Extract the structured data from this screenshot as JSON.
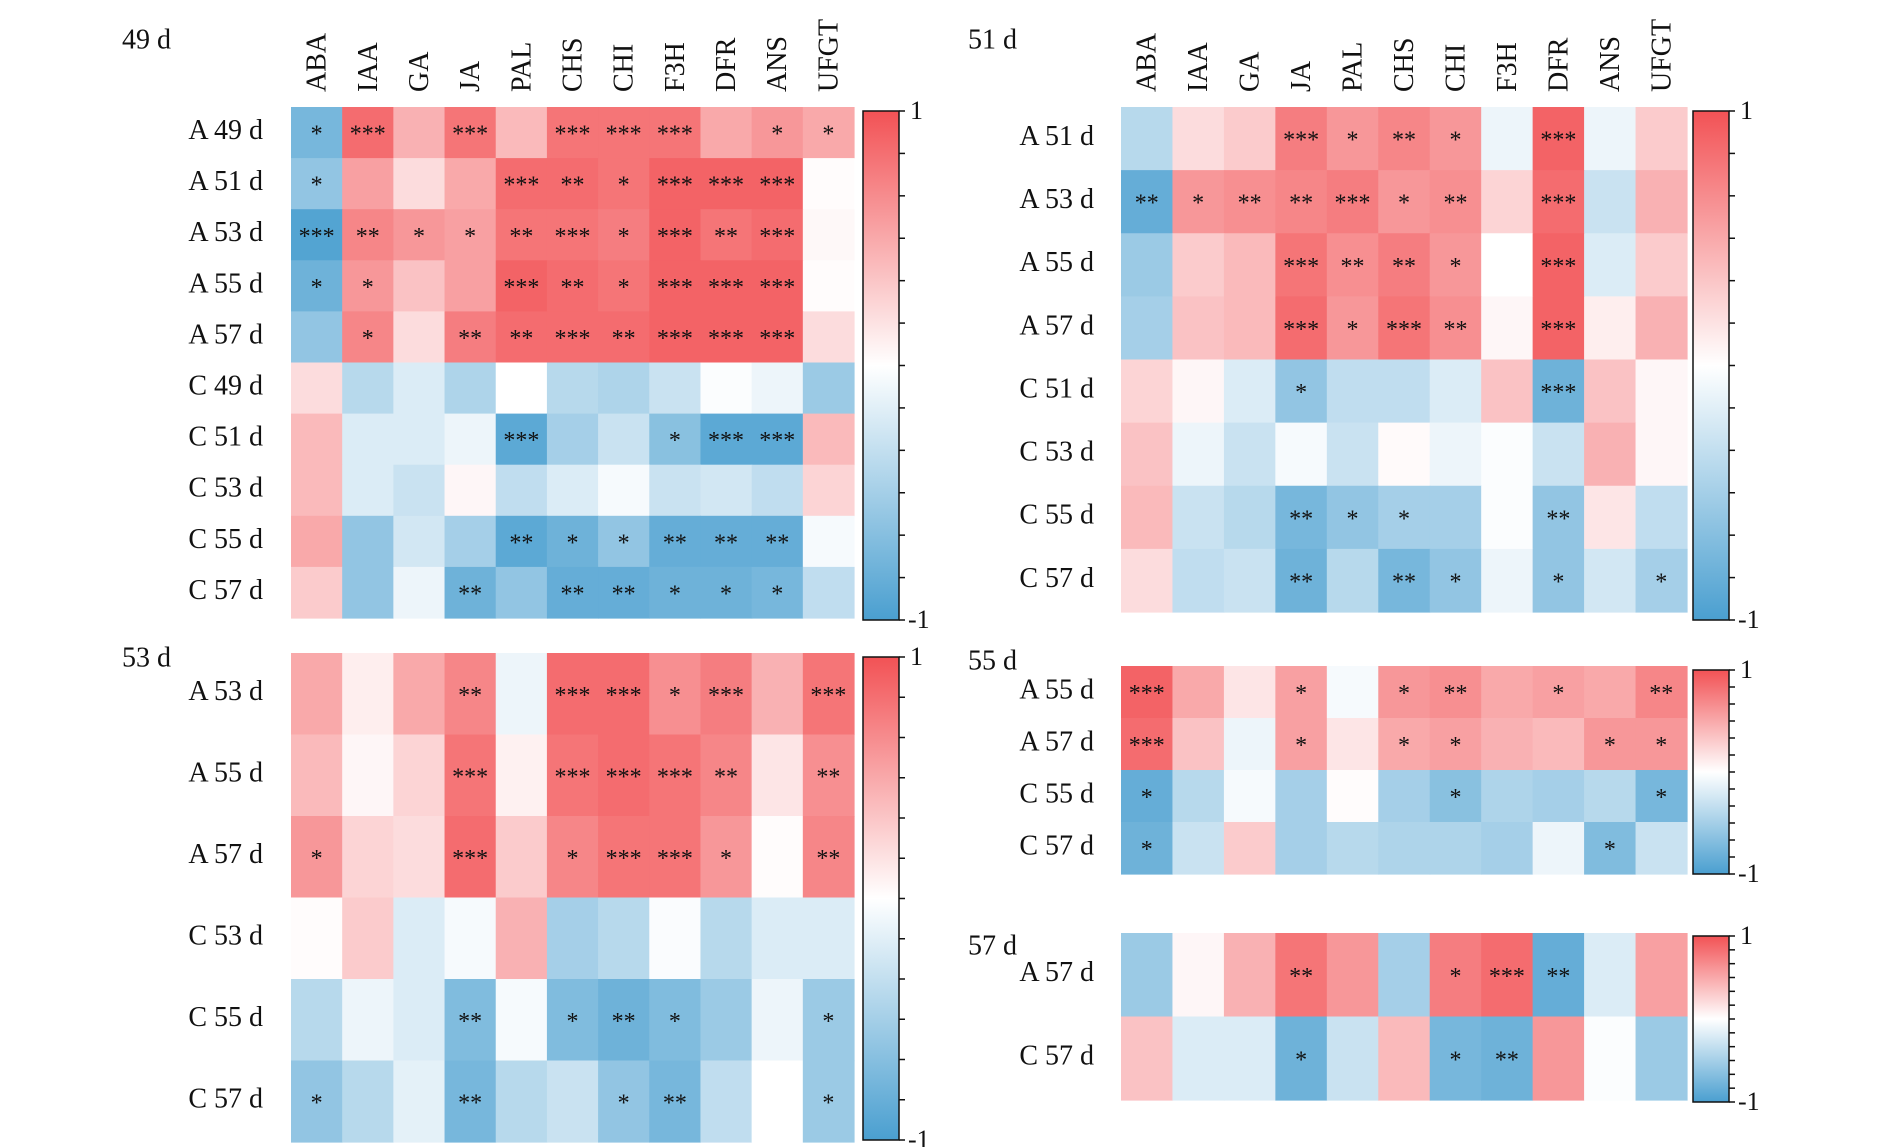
{
  "colors": {
    "negative": "#4a9fd0",
    "zero": "#ffffff",
    "positive": "#f25255"
  },
  "chart_data": [
    {
      "type": "heatmap",
      "title": "49 d",
      "scale_range": [
        -1,
        1
      ],
      "scale_labels": [
        "1",
        "-1"
      ],
      "columns": [
        "ABA",
        "IAA",
        "GA",
        "JA",
        "PAL",
        "CHS",
        "CHI",
        "F3H",
        "DFR",
        "ANS",
        "UFGT"
      ],
      "rows": [
        "A 49 d",
        "A 51 d",
        "A 53 d",
        "A 55 d",
        "A 57 d",
        "C 49 d",
        "C 51 d",
        "C 53 d",
        "C 55 d",
        "C 57 d"
      ],
      "values": [
        [
          -0.75,
          0.85,
          0.45,
          0.8,
          0.4,
          0.8,
          0.8,
          0.8,
          0.5,
          0.6,
          0.5
        ],
        [
          -0.6,
          0.55,
          0.2,
          0.5,
          0.85,
          0.85,
          0.8,
          0.9,
          0.9,
          0.9,
          0.02
        ],
        [
          -0.95,
          0.7,
          0.6,
          0.55,
          0.8,
          0.8,
          0.75,
          0.9,
          0.8,
          0.85,
          0.04
        ],
        [
          -0.8,
          0.6,
          0.35,
          0.55,
          0.9,
          0.85,
          0.8,
          0.9,
          0.9,
          0.9,
          0.02
        ],
        [
          -0.6,
          0.7,
          0.2,
          0.75,
          0.85,
          0.85,
          0.85,
          0.9,
          0.9,
          0.9,
          0.2
        ],
        [
          0.2,
          -0.4,
          -0.2,
          -0.45,
          0.0,
          -0.4,
          -0.45,
          -0.3,
          -0.02,
          -0.1,
          -0.55
        ],
        [
          0.4,
          -0.2,
          -0.2,
          -0.1,
          -0.9,
          -0.5,
          -0.3,
          -0.65,
          -0.9,
          -0.9,
          0.4
        ],
        [
          0.4,
          -0.2,
          -0.3,
          0.05,
          -0.35,
          -0.2,
          -0.05,
          -0.3,
          -0.25,
          -0.35,
          0.25
        ],
        [
          0.5,
          -0.6,
          -0.25,
          -0.5,
          -0.9,
          -0.8,
          -0.6,
          -0.85,
          -0.85,
          -0.85,
          -0.05
        ],
        [
          0.3,
          -0.6,
          -0.1,
          -0.8,
          -0.6,
          -0.85,
          -0.85,
          -0.8,
          -0.8,
          -0.75,
          -0.35
        ]
      ],
      "significance": [
        [
          "*",
          "***",
          "",
          "***",
          "",
          "***",
          "***",
          "***",
          "",
          "*",
          "*"
        ],
        [
          "*",
          "",
          "",
          "",
          "***",
          "**",
          "*",
          "***",
          "***",
          "***",
          ""
        ],
        [
          "***",
          "**",
          "*",
          "*",
          "**",
          "***",
          "*",
          "***",
          "**",
          "***",
          ""
        ],
        [
          "*",
          "*",
          "",
          "",
          "***",
          "**",
          "*",
          "***",
          "***",
          "***",
          ""
        ],
        [
          "",
          "*",
          "",
          "**",
          "**",
          "***",
          "**",
          "***",
          "***",
          "***",
          ""
        ],
        [
          "",
          "",
          "",
          "",
          "",
          "",
          "",
          "",
          "",
          "",
          ""
        ],
        [
          "",
          "",
          "",
          "",
          "***",
          "",
          "",
          "*",
          "***",
          "***",
          ""
        ],
        [
          "",
          "",
          "",
          "",
          "",
          "",
          "",
          "",
          "",
          "",
          ""
        ],
        [
          "",
          "",
          "",
          "",
          "**",
          "*",
          "*",
          "**",
          "**",
          "**",
          ""
        ],
        [
          "",
          "",
          "",
          "**",
          "",
          "**",
          "**",
          "*",
          "*",
          "*",
          ""
        ]
      ]
    },
    {
      "type": "heatmap",
      "title": "51 d",
      "scale_range": [
        -1,
        1
      ],
      "scale_labels": [
        "1",
        "-1"
      ],
      "columns": [
        "ABA",
        "IAA",
        "GA",
        "JA",
        "PAL",
        "CHS",
        "CHI",
        "F3H",
        "DFR",
        "ANS",
        "UFGT"
      ],
      "rows": [
        "A 51 d",
        "A 53 d",
        "A 55 d",
        "A 57 d",
        "C 51 d",
        "C 53 d",
        "C 55 d",
        "C 57 d"
      ],
      "values": [
        [
          -0.4,
          0.2,
          0.3,
          0.75,
          0.6,
          0.7,
          0.6,
          -0.1,
          0.9,
          -0.1,
          0.3
        ],
        [
          -0.85,
          0.6,
          0.65,
          0.7,
          0.75,
          0.6,
          0.65,
          0.25,
          0.85,
          -0.3,
          0.45
        ],
        [
          -0.55,
          0.3,
          0.4,
          0.8,
          0.65,
          0.75,
          0.6,
          0.0,
          0.9,
          -0.2,
          0.3
        ],
        [
          -0.5,
          0.35,
          0.4,
          0.85,
          0.6,
          0.8,
          0.65,
          0.05,
          0.9,
          0.1,
          0.45
        ],
        [
          0.25,
          0.05,
          -0.2,
          -0.6,
          -0.35,
          -0.35,
          -0.2,
          0.35,
          -0.8,
          0.35,
          0.05
        ],
        [
          0.35,
          -0.1,
          -0.3,
          -0.05,
          -0.3,
          0.03,
          -0.1,
          -0.02,
          -0.3,
          0.45,
          0.05
        ],
        [
          0.4,
          -0.3,
          -0.4,
          -0.75,
          -0.6,
          -0.5,
          -0.5,
          -0.02,
          -0.6,
          0.15,
          -0.35
        ],
        [
          0.2,
          -0.35,
          -0.3,
          -0.8,
          -0.4,
          -0.75,
          -0.6,
          -0.1,
          -0.6,
          -0.25,
          -0.5
        ]
      ],
      "significance": [
        [
          "",
          "",
          "",
          "***",
          "*",
          "**",
          "*",
          "",
          "***",
          "",
          ""
        ],
        [
          "**",
          "*",
          "**",
          "**",
          "***",
          "*",
          "**",
          "",
          "***",
          "",
          ""
        ],
        [
          "",
          "",
          "",
          "***",
          "**",
          "**",
          "*",
          "",
          "***",
          "",
          ""
        ],
        [
          "",
          "",
          "",
          "***",
          "*",
          "***",
          "**",
          "",
          "***",
          "",
          ""
        ],
        [
          "",
          "",
          "",
          "*",
          "",
          "",
          "",
          "",
          "***",
          "",
          ""
        ],
        [
          "",
          "",
          "",
          "",
          "",
          "",
          "",
          "",
          "",
          "",
          ""
        ],
        [
          "",
          "",
          "",
          "**",
          "*",
          "*",
          "",
          "",
          "**",
          "",
          ""
        ],
        [
          "",
          "",
          "",
          "**",
          "",
          "**",
          "*",
          "",
          "*",
          "",
          "*"
        ]
      ]
    },
    {
      "type": "heatmap",
      "title": "53 d",
      "scale_range": [
        -1,
        1
      ],
      "scale_labels": [
        "1",
        "-1"
      ],
      "columns": [
        "ABA",
        "IAA",
        "GA",
        "JA",
        "PAL",
        "CHS",
        "CHI",
        "F3H",
        "DFR",
        "ANS",
        "UFGT"
      ],
      "rows": [
        "A 53 d",
        "A 55 d",
        "A 57 d",
        "C 53 d",
        "C 55 d",
        "C 57 d"
      ],
      "values": [
        [
          0.5,
          0.1,
          0.5,
          0.7,
          -0.1,
          0.85,
          0.85,
          0.65,
          0.75,
          0.45,
          0.8
        ],
        [
          0.4,
          0.05,
          0.25,
          0.8,
          0.08,
          0.8,
          0.85,
          0.8,
          0.7,
          0.15,
          0.65
        ],
        [
          0.6,
          0.25,
          0.2,
          0.85,
          0.3,
          0.7,
          0.8,
          0.8,
          0.6,
          0.02,
          0.7
        ],
        [
          0.02,
          0.3,
          -0.2,
          -0.05,
          0.45,
          -0.5,
          -0.4,
          -0.03,
          -0.4,
          -0.2,
          -0.2
        ],
        [
          -0.4,
          -0.1,
          -0.2,
          -0.7,
          -0.05,
          -0.7,
          -0.8,
          -0.7,
          -0.55,
          -0.1,
          -0.55
        ],
        [
          -0.6,
          -0.4,
          -0.15,
          -0.75,
          -0.4,
          -0.3,
          -0.6,
          -0.75,
          -0.35,
          0.0,
          -0.55
        ]
      ],
      "significance": [
        [
          "",
          "",
          "",
          "**",
          "",
          "***",
          "***",
          "*",
          "***",
          "",
          "***"
        ],
        [
          "",
          "",
          "",
          "***",
          "",
          "***",
          "***",
          "***",
          "**",
          "",
          "**"
        ],
        [
          "*",
          "",
          "",
          "***",
          "",
          "*",
          "***",
          "***",
          "*",
          "",
          "**"
        ],
        [
          "",
          "",
          "",
          "",
          "",
          "",
          "",
          "",
          "",
          "",
          ""
        ],
        [
          "",
          "",
          "",
          "**",
          "",
          "*",
          "**",
          "*",
          "",
          "",
          "*"
        ],
        [
          "*",
          "",
          "",
          "**",
          "",
          "",
          "*",
          "**",
          "",
          "",
          "*"
        ]
      ]
    },
    {
      "type": "heatmap",
      "title": "55 d",
      "scale_range": [
        -1,
        1
      ],
      "scale_labels": [
        "1",
        "-1"
      ],
      "columns": [
        "ABA",
        "IAA",
        "GA",
        "JA",
        "PAL",
        "CHS",
        "CHI",
        "F3H",
        "DFR",
        "ANS",
        "UFGT"
      ],
      "rows": [
        "A 55 d",
        "A 57 d",
        "C 55 d",
        "C 57 d"
      ],
      "values": [
        [
          0.9,
          0.5,
          0.15,
          0.55,
          -0.05,
          0.6,
          0.65,
          0.5,
          0.55,
          0.5,
          0.7
        ],
        [
          0.85,
          0.35,
          -0.1,
          0.55,
          0.15,
          0.5,
          0.55,
          0.45,
          0.4,
          0.6,
          0.6
        ],
        [
          -0.85,
          -0.4,
          -0.05,
          -0.5,
          0.02,
          -0.5,
          -0.65,
          -0.45,
          -0.5,
          -0.4,
          -0.75
        ],
        [
          -0.8,
          -0.3,
          0.3,
          -0.5,
          -0.4,
          -0.45,
          -0.45,
          -0.5,
          -0.1,
          -0.7,
          -0.3
        ]
      ],
      "significance": [
        [
          "***",
          "",
          "",
          "*",
          "",
          "*",
          "**",
          "",
          "*",
          "",
          "**"
        ],
        [
          "***",
          "",
          "",
          "*",
          "",
          "*",
          "*",
          "",
          "",
          "*",
          "*"
        ],
        [
          "*",
          "",
          "",
          "",
          "",
          "",
          "*",
          "",
          "",
          "",
          "*"
        ],
        [
          "*",
          "",
          "",
          "",
          "",
          "",
          "",
          "",
          "",
          "*",
          ""
        ]
      ]
    },
    {
      "type": "heatmap",
      "title": "57 d",
      "scale_range": [
        -1,
        1
      ],
      "scale_labels": [
        "1",
        "-1"
      ],
      "columns": [
        "ABA",
        "IAA",
        "GA",
        "JA",
        "PAL",
        "CHS",
        "CHI",
        "F3H",
        "DFR",
        "ANS",
        "UFGT"
      ],
      "rows": [
        "A 57 d",
        "C 57 d"
      ],
      "values": [
        [
          -0.55,
          0.05,
          0.45,
          0.8,
          0.6,
          -0.5,
          0.75,
          0.85,
          -0.85,
          -0.2,
          0.55
        ],
        [
          0.35,
          -0.2,
          -0.2,
          -0.8,
          -0.3,
          0.4,
          -0.75,
          -0.8,
          0.6,
          -0.02,
          -0.55
        ]
      ],
      "significance": [
        [
          "",
          "",
          "",
          "**",
          "",
          "",
          "*",
          "***",
          "**",
          "",
          ""
        ],
        [
          "",
          "",
          "",
          "*",
          "",
          "",
          "*",
          "**",
          "",
          "",
          ""
        ]
      ]
    }
  ]
}
